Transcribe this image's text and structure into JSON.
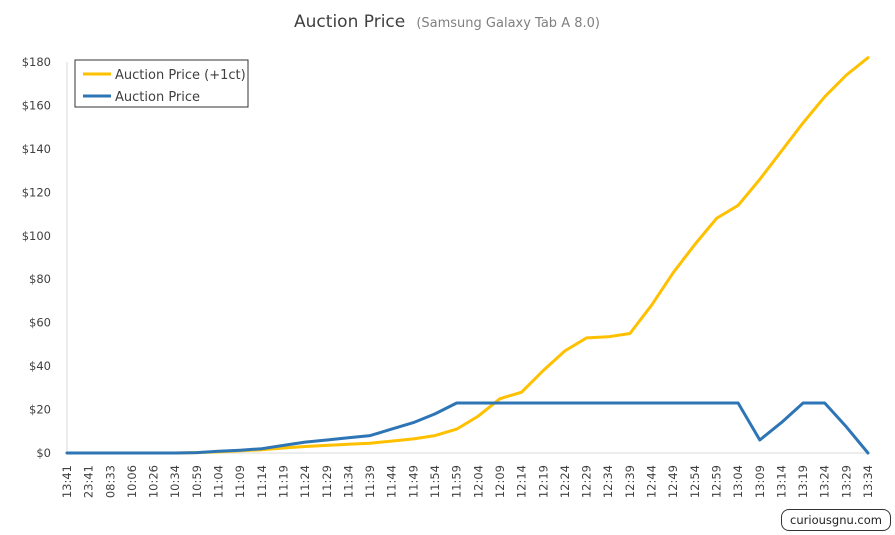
{
  "chart_data": {
    "type": "line",
    "title": "Auction Price",
    "subtitle": "(Samsung Galaxy Tab A 8.0)",
    "xlabel": "",
    "ylabel": "",
    "ylim": [
      0,
      180
    ],
    "y_ticks": [
      "$0",
      "$20",
      "$40",
      "$60",
      "$80",
      "$100",
      "$120",
      "$140",
      "$160",
      "$180"
    ],
    "y_tick_values": [
      0,
      20,
      40,
      60,
      80,
      100,
      120,
      140,
      160,
      180
    ],
    "grid": false,
    "legend_position": "top-left",
    "categories": [
      "13:41",
      "23:41",
      "08:33",
      "10:06",
      "10:26",
      "10:34",
      "10:59",
      "11:04",
      "11:09",
      "11:14",
      "11:19",
      "11:24",
      "11:29",
      "11:34",
      "11:39",
      "11:44",
      "11:49",
      "11:54",
      "11:59",
      "12:04",
      "12:09",
      "12:14",
      "12:19",
      "12:24",
      "12:29",
      "12:34",
      "12:39",
      "12:44",
      "12:49",
      "12:54",
      "12:59",
      "13:04",
      "13:09",
      "13:14",
      "13:19",
      "13:24",
      "13:29",
      "13:34"
    ],
    "series": [
      {
        "name": "Auction Price (+1ct)",
        "color": "#FFC000",
        "values": [
          0,
          0,
          0,
          0,
          0,
          0,
          0.2,
          0.5,
          1,
          1.5,
          2.3,
          3,
          3.5,
          4,
          4.5,
          5.5,
          6.5,
          8,
          11,
          17,
          25,
          28,
          38,
          47,
          53,
          53.5,
          55,
          68,
          83,
          96,
          108,
          114,
          126,
          139,
          152,
          164,
          174,
          182
        ]
      },
      {
        "name": "Auction Price",
        "color": "#2E75B6",
        "values": [
          0,
          0,
          0,
          0,
          0,
          0,
          0.2,
          0.8,
          1.3,
          2,
          3.5,
          5,
          6,
          7,
          8,
          11,
          14,
          18,
          23,
          23,
          23,
          23,
          23,
          23,
          23,
          23,
          23,
          23,
          23,
          23,
          23,
          23,
          6,
          14,
          23,
          23,
          12,
          0
        ]
      }
    ]
  },
  "watermark": "curiousgnu.com"
}
